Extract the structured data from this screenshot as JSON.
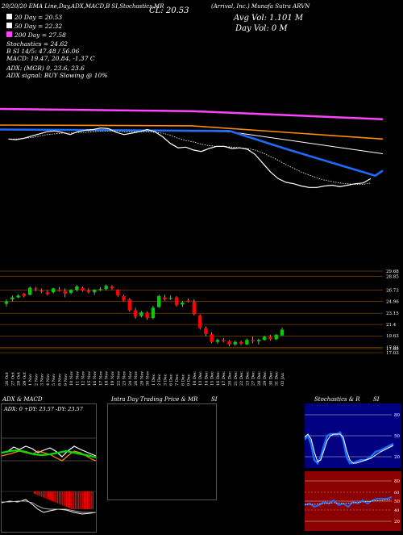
{
  "header": {
    "top_line": "20/20/20 EMA Line,Day,ADX,MACD,B SI,Stochastics,MR",
    "cl": "CL: 20.53",
    "symbol_line": "(Arrival, Inc.) Munafa Sutra ARVN",
    "avg_vol": "Avg Vol: 1.101 M",
    "day_vol": "Day Vol: 0  M",
    "ma": [
      {
        "text": "20  Day = 20.53",
        "color": "#ffffff"
      },
      {
        "text": "50  Day = 22.32",
        "color": "#ffffff"
      },
      {
        "text": "200  Day = 27.58",
        "color": "#ff44ff"
      }
    ],
    "stats": [
      "Stochastics = 24.62",
      "B        SI 14/5: 47.48 / 56.06",
      "MACD: 19.47, 20.84, -1.37 C"
    ],
    "adx_line": "ADX:                                      (MGR) 0, 23.6, 23.6",
    "adx_signal": "ADX  signal:                                              BUY Slowing @ 10%"
  },
  "colors": {
    "up": "#00cc00",
    "down": "#ff0000",
    "ma200": "#ff44ff",
    "ma50": "#ff8c00",
    "ma20": "#1e6bff",
    "macd_hist": "#ff0000",
    "rsi_bg": "#8b0000",
    "stoch_bg": "#000080"
  },
  "chart_data": {
    "type": "candlestick",
    "price_levels": [
      "29.68",
      "28.85",
      "26.73",
      "24.96",
      "23.15",
      "21.4",
      "19.63",
      "17.83",
      "17.65",
      "17.03"
    ],
    "dates": [
      "26 Oct",
      "27 Oct",
      "28 Oct",
      "29 Oct",
      "1 Nov",
      "2 Nov",
      "3 Nov",
      "4 Nov",
      "5 Nov",
      "8 Nov",
      "9 Nov",
      "10 Nov",
      "11 Nov",
      "12 Nov",
      "15 Nov",
      "16 Nov",
      "17 Nov",
      "18 Nov",
      "19 Nov",
      "22 Nov",
      "23 Nov",
      "24 Nov",
      "26 Nov",
      "29 Nov",
      "30 Nov",
      "1 Dec",
      "2 Dec",
      "3 Dec",
      "6 Dec",
      "7 Dec",
      "8 Dec",
      "9 Dec",
      "10 Dec",
      "13 Dec",
      "14 Dec",
      "15 Dec",
      "16 Dec",
      "17 Dec",
      "20 Dec",
      "21 Dec",
      "22 Dec",
      "23 Dec",
      "27 Dec",
      "28 Dec",
      "29 Dec",
      "30 Dec",
      "31 Dec",
      "03 Jan"
    ],
    "candles": [
      [
        24.6,
        25.3,
        24.2,
        25.0
      ],
      [
        25.3,
        25.9,
        25.0,
        25.6
      ],
      [
        25.6,
        26.1,
        25.5,
        25.9
      ],
      [
        26.2,
        26.3,
        25.6,
        25.8
      ],
      [
        26.0,
        27.3,
        25.9,
        27.1
      ],
      [
        27.0,
        27.2,
        26.6,
        26.9
      ],
      [
        26.7,
        27.0,
        26.3,
        26.5
      ],
      [
        26.4,
        26.7,
        25.9,
        26.1
      ],
      [
        26.4,
        27.1,
        26.2,
        27.0
      ],
      [
        26.8,
        27.2,
        26.5,
        26.6
      ],
      [
        26.6,
        27.0,
        25.6,
        26.2
      ],
      [
        26.3,
        26.9,
        26.1,
        26.8
      ],
      [
        26.8,
        27.5,
        26.5,
        27.3
      ],
      [
        27.1,
        27.3,
        26.5,
        26.7
      ],
      [
        26.7,
        27.0,
        26.2,
        26.4
      ],
      [
        26.4,
        26.9,
        26.0,
        26.8
      ],
      [
        26.8,
        27.2,
        26.6,
        26.9
      ],
      [
        26.9,
        27.6,
        26.7,
        27.4
      ],
      [
        27.3,
        27.5,
        26.8,
        27.0
      ],
      [
        26.8,
        26.9,
        25.7,
        25.9
      ],
      [
        25.8,
        26.0,
        25.0,
        25.1
      ],
      [
        25.3,
        25.5,
        23.4,
        23.6
      ],
      [
        23.6,
        24.0,
        22.3,
        22.6
      ],
      [
        22.7,
        23.5,
        22.5,
        23.3
      ],
      [
        23.2,
        23.4,
        22.1,
        22.4
      ],
      [
        22.4,
        24.3,
        22.2,
        24.0
      ],
      [
        24.1,
        26.0,
        24.0,
        25.8
      ],
      [
        25.6,
        26.0,
        25.1,
        25.3
      ],
      [
        25.4,
        25.9,
        25.2,
        25.5
      ],
      [
        25.6,
        25.8,
        24.2,
        24.4
      ],
      [
        24.5,
        25.0,
        24.1,
        24.8
      ],
      [
        25.1,
        25.4,
        24.8,
        24.9
      ],
      [
        24.9,
        25.3,
        22.8,
        23.0
      ],
      [
        22.8,
        23.0,
        20.6,
        20.9
      ],
      [
        20.8,
        21.1,
        19.6,
        19.9
      ],
      [
        19.9,
        20.2,
        18.5,
        18.7
      ],
      [
        18.7,
        19.2,
        18.4,
        19.0
      ],
      [
        19.0,
        19.3,
        18.6,
        18.8
      ],
      [
        18.8,
        19.0,
        18.0,
        18.3
      ],
      [
        18.3,
        18.9,
        18.1,
        18.7
      ],
      [
        18.7,
        18.9,
        18.2,
        18.4
      ],
      [
        18.3,
        19.2,
        18.2,
        19.0
      ],
      [
        19.0,
        19.5,
        18.5,
        18.8
      ],
      [
        18.8,
        19.2,
        18.3,
        19.0
      ],
      [
        19.0,
        19.6,
        18.9,
        19.5
      ],
      [
        19.5,
        19.8,
        18.9,
        19.1
      ],
      [
        19.1,
        19.9,
        19.0,
        19.8
      ],
      [
        19.7,
        20.9,
        19.6,
        20.6
      ]
    ],
    "top_line_prices": [
      25.9,
      25.8,
      26.0,
      26.3,
      26.6,
      26.9,
      27.0,
      26.8,
      26.5,
      26.9,
      27.1,
      27.2,
      27.4,
      27.3,
      26.8,
      26.5,
      26.7,
      26.9,
      27.2,
      26.9,
      26.2,
      25.3,
      24.7,
      24.8,
      24.4,
      24.2,
      24.6,
      24.9,
      24.9,
      24.6,
      24.7,
      24.5,
      23.8,
      22.6,
      21.4,
      20.5,
      20.0,
      19.8,
      19.5,
      19.3,
      19.3,
      19.5,
      19.6,
      19.4,
      19.6,
      19.8,
      19.9,
      20.5
    ],
    "dotted_line_prices": [
      25.9,
      25.9,
      26.0,
      26.1,
      26.3,
      26.5,
      26.6,
      26.7,
      26.7,
      26.8,
      26.8,
      26.9,
      27.0,
      27.0,
      27.0,
      26.9,
      26.9,
      26.9,
      26.9,
      26.8,
      26.7,
      26.4,
      26.0,
      25.7,
      25.5,
      25.2,
      25.0,
      24.9,
      24.9,
      24.8,
      24.7,
      24.6,
      24.4,
      24.0,
      23.5,
      23.0,
      22.4,
      21.9,
      21.4,
      21.0,
      20.6,
      20.3,
      20.1,
      19.9,
      19.8,
      19.7,
      19.7,
      19.9
    ],
    "ma_lines": {
      "ma200": [
        [
          0,
          30.0
        ],
        [
          0.5,
          29.7
        ],
        [
          1,
          28.6
        ]
      ],
      "ma50": [
        [
          0,
          27.8
        ],
        [
          0.5,
          27.7
        ],
        [
          1,
          25.9
        ]
      ],
      "ma20_blue": [
        [
          0,
          27.2
        ],
        [
          0.6,
          27.0
        ],
        [
          0.75,
          24.5
        ],
        [
          0.98,
          20.9
        ],
        [
          1,
          21.6
        ]
      ],
      "ma20_white": [
        [
          0,
          27.2
        ],
        [
          0.6,
          26.9
        ],
        [
          1,
          23.9
        ]
      ]
    }
  },
  "panels": {
    "adx": {
      "title": "ADX  & MACD",
      "readout": "ADX: 0  +DY: 23.57  -DY: 23.57"
    },
    "intraday": {
      "title": "Intra  Day  Trading  Price  & MR",
      "title_right": "SI"
    },
    "stoch": {
      "title": "Stochastics & R",
      "title_right": "SI",
      "levels": [
        "80",
        "50",
        "20"
      ]
    },
    "rsi": {
      "levels": [
        "80",
        "50",
        "20"
      ],
      "extra": [
        "60",
        "40"
      ]
    }
  }
}
